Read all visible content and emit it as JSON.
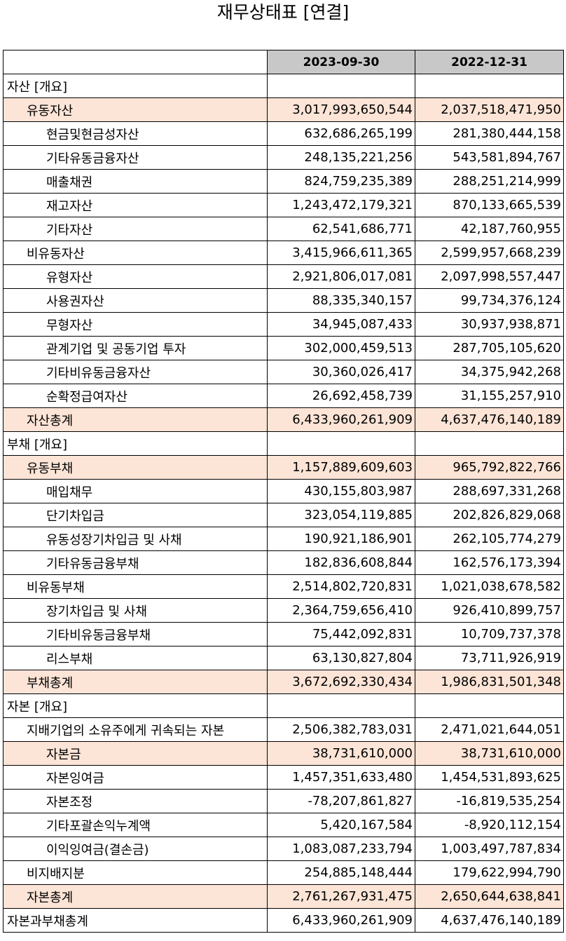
{
  "title": "재무상태표 [연결]",
  "columns": [
    "",
    "2023-09-30",
    "2022-12-31"
  ],
  "rows": [
    {
      "label": "자산 [개요]",
      "level": 0,
      "highlight": false,
      "v1": "",
      "v2": ""
    },
    {
      "label": "유동자산",
      "level": 1,
      "highlight": true,
      "v1": "3,017,993,650,544",
      "v2": "2,037,518,471,950"
    },
    {
      "label": "현금및현금성자산",
      "level": 2,
      "highlight": false,
      "v1": "632,686,265,199",
      "v2": "281,380,444,158"
    },
    {
      "label": "기타유동금융자산",
      "level": 2,
      "highlight": false,
      "v1": "248,135,221,256",
      "v2": "543,581,894,767"
    },
    {
      "label": "매출채권",
      "level": 2,
      "highlight": false,
      "v1": "824,759,235,389",
      "v2": "288,251,214,999"
    },
    {
      "label": "재고자산",
      "level": 2,
      "highlight": false,
      "v1": "1,243,472,179,321",
      "v2": "870,133,665,539"
    },
    {
      "label": "기타자산",
      "level": 2,
      "highlight": false,
      "v1": "62,541,686,771",
      "v2": "42,187,760,955"
    },
    {
      "label": "비유동자산",
      "level": 1,
      "highlight": false,
      "v1": "3,415,966,611,365",
      "v2": "2,599,957,668,239"
    },
    {
      "label": "유형자산",
      "level": 2,
      "highlight": false,
      "v1": "2,921,806,017,081",
      "v2": "2,097,998,557,447"
    },
    {
      "label": "사용권자산",
      "level": 2,
      "highlight": false,
      "v1": "88,335,340,157",
      "v2": "99,734,376,124"
    },
    {
      "label": "무형자산",
      "level": 2,
      "highlight": false,
      "v1": "34,945,087,433",
      "v2": "30,937,938,871"
    },
    {
      "label": "관계기업 및 공동기업 투자",
      "level": 2,
      "highlight": false,
      "v1": "302,000,459,513",
      "v2": "287,705,105,620"
    },
    {
      "label": "기타비유동금융자산",
      "level": 2,
      "highlight": false,
      "v1": "30,360,026,417",
      "v2": "34,375,942,268"
    },
    {
      "label": "순확정급여자산",
      "level": 2,
      "highlight": false,
      "v1": "26,692,458,739",
      "v2": "31,155,257,910"
    },
    {
      "label": "자산총계",
      "level": 1,
      "highlight": true,
      "v1": "6,433,960,261,909",
      "v2": "4,637,476,140,189"
    },
    {
      "label": "부채 [개요]",
      "level": 0,
      "highlight": false,
      "v1": "",
      "v2": ""
    },
    {
      "label": "유동부채",
      "level": 1,
      "highlight": true,
      "v1": "1,157,889,609,603",
      "v2": "965,792,822,766"
    },
    {
      "label": "매입채무",
      "level": 2,
      "highlight": false,
      "v1": "430,155,803,987",
      "v2": "288,697,331,268"
    },
    {
      "label": "단기차입금",
      "level": 2,
      "highlight": false,
      "v1": "323,054,119,885",
      "v2": "202,826,829,068"
    },
    {
      "label": "유동성장기차입금 및 사채",
      "level": 2,
      "highlight": false,
      "v1": "190,921,186,901",
      "v2": "262,105,774,279"
    },
    {
      "label": "기타유동금융부채",
      "level": 2,
      "highlight": false,
      "v1": "182,836,608,844",
      "v2": "162,576,173,394"
    },
    {
      "label": "비유동부채",
      "level": 1,
      "highlight": false,
      "v1": "2,514,802,720,831",
      "v2": "1,021,038,678,582"
    },
    {
      "label": "장기차입금 및 사채",
      "level": 2,
      "highlight": false,
      "v1": "2,364,759,656,410",
      "v2": "926,410,899,757"
    },
    {
      "label": "기타비유동금융부채",
      "level": 2,
      "highlight": false,
      "v1": "75,442,092,831",
      "v2": "10,709,737,378"
    },
    {
      "label": "리스부채",
      "level": 2,
      "highlight": false,
      "v1": "63,130,827,804",
      "v2": "73,711,926,919"
    },
    {
      "label": "부채총계",
      "level": 1,
      "highlight": true,
      "v1": "3,672,692,330,434",
      "v2": "1,986,831,501,348"
    },
    {
      "label": "자본 [개요]",
      "level": 0,
      "highlight": false,
      "v1": "",
      "v2": ""
    },
    {
      "label": "지배기업의 소유주에게 귀속되는 자본",
      "level": 1,
      "highlight": false,
      "v1": "2,506,382,783,031",
      "v2": "2,471,021,644,051"
    },
    {
      "label": "자본금",
      "level": 2,
      "highlight": true,
      "v1": "38,731,610,000",
      "v2": "38,731,610,000"
    },
    {
      "label": "자본잉여금",
      "level": 2,
      "highlight": false,
      "v1": "1,457,351,633,480",
      "v2": "1,454,531,893,625"
    },
    {
      "label": "자본조정",
      "level": 2,
      "highlight": false,
      "v1": "-78,207,861,827",
      "v2": "-16,819,535,254"
    },
    {
      "label": "기타포괄손익누계액",
      "level": 2,
      "highlight": false,
      "v1": "5,420,167,584",
      "v2": "-8,920,112,154"
    },
    {
      "label": "이익잉여금(결손금)",
      "level": 2,
      "highlight": false,
      "v1": "1,083,087,233,794",
      "v2": "1,003,497,787,834"
    },
    {
      "label": "비지배지분",
      "level": 1,
      "highlight": false,
      "v1": "254,885,148,444",
      "v2": "179,622,994,790"
    },
    {
      "label": "자본총계",
      "level": 1,
      "highlight": true,
      "v1": "2,761,267,931,475",
      "v2": "2,650,644,638,841"
    },
    {
      "label": "자본과부채총계",
      "level": 0,
      "highlight": false,
      "v1": "6,433,960,261,909",
      "v2": "4,637,476,140,189"
    }
  ]
}
